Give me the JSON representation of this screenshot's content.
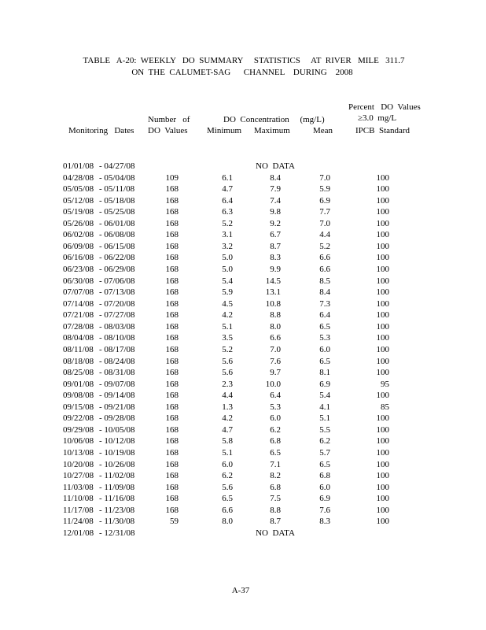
{
  "title": {
    "line1": "TABLE   A-20:  WEEKLY   DO  SUMMARY     STATISTICS     AT  RIVER   MILE   311.7",
    "line2": "ON  THE  CALUMET-SAG      CHANNEL    DURING    2008"
  },
  "headers": {
    "percent_line1": "Percent   DO  Values",
    "percent_line2": "≥3.0  mg/L",
    "percent_line3": "IPCB  Standard",
    "number_line1": "Number   of",
    "number_line2": "DO  Values",
    "concentration": "DO  Concentration     (mg/L)",
    "monitoring_dates": "Monitoring   Dates",
    "minimum": "Minimum",
    "maximum": "Maximum",
    "mean": "Mean"
  },
  "rows": [
    {
      "start": "01/01/08",
      "end": "- 04/27/08",
      "no_data": "NO  DATA"
    },
    {
      "start": "04/28/08",
      "end": "- 05/04/08",
      "count": "109",
      "min": "6.1",
      "max": "8.4",
      "mean": "7.0",
      "pct": "100"
    },
    {
      "start": "05/05/08",
      "end": "- 05/11/08",
      "count": "168",
      "min": "4.7",
      "max": "7.9",
      "mean": "5.9",
      "pct": "100"
    },
    {
      "start": "05/12/08",
      "end": "- 05/18/08",
      "count": "168",
      "min": "6.4",
      "max": "7.4",
      "mean": "6.9",
      "pct": "100"
    },
    {
      "start": "05/19/08",
      "end": "- 05/25/08",
      "count": "168",
      "min": "6.3",
      "max": "9.8",
      "mean": "7.7",
      "pct": "100"
    },
    {
      "start": "05/26/08",
      "end": "- 06/01/08",
      "count": "168",
      "min": "5.2",
      "max": "9.2",
      "mean": "7.0",
      "pct": "100"
    },
    {
      "start": "06/02/08",
      "end": "- 06/08/08",
      "count": "168",
      "min": "3.1",
      "max": "6.7",
      "mean": "4.4",
      "pct": "100"
    },
    {
      "start": "06/09/08",
      "end": "- 06/15/08",
      "count": "168",
      "min": "3.2",
      "max": "8.7",
      "mean": "5.2",
      "pct": "100"
    },
    {
      "start": "06/16/08",
      "end": "- 06/22/08",
      "count": "168",
      "min": "5.0",
      "max": "8.3",
      "mean": "6.6",
      "pct": "100"
    },
    {
      "start": "06/23/08",
      "end": "- 06/29/08",
      "count": "168",
      "min": "5.0",
      "max": "9.9",
      "mean": "6.6",
      "pct": "100"
    },
    {
      "start": "06/30/08",
      "end": "- 07/06/08",
      "count": "168",
      "min": "5.4",
      "max": "14.5",
      "mean": "8.5",
      "pct": "100"
    },
    {
      "start": "07/07/08",
      "end": "- 07/13/08",
      "count": "168",
      "min": "5.9",
      "max": "13.1",
      "mean": "8.4",
      "pct": "100"
    },
    {
      "start": "07/14/08",
      "end": "- 07/20/08",
      "count": "168",
      "min": "4.5",
      "max": "10.8",
      "mean": "7.3",
      "pct": "100"
    },
    {
      "start": "07/21/08",
      "end": "- 07/27/08",
      "count": "168",
      "min": "4.2",
      "max": "8.8",
      "mean": "6.4",
      "pct": "100"
    },
    {
      "start": "07/28/08",
      "end": "- 08/03/08",
      "count": "168",
      "min": "5.1",
      "max": "8.0",
      "mean": "6.5",
      "pct": "100"
    },
    {
      "start": "08/04/08",
      "end": "- 08/10/08",
      "count": "168",
      "min": "3.5",
      "max": "6.6",
      "mean": "5.3",
      "pct": "100"
    },
    {
      "start": "08/11/08",
      "end": "- 08/17/08",
      "count": "168",
      "min": "5.2",
      "max": "7.0",
      "mean": "6.0",
      "pct": "100"
    },
    {
      "start": "08/18/08",
      "end": "- 08/24/08",
      "count": "168",
      "min": "5.6",
      "max": "7.6",
      "mean": "6.5",
      "pct": "100"
    },
    {
      "start": "08/25/08",
      "end": "- 08/31/08",
      "count": "168",
      "min": "5.6",
      "max": "9.7",
      "mean": "8.1",
      "pct": "100"
    },
    {
      "start": "09/01/08",
      "end": "- 09/07/08",
      "count": "168",
      "min": "2.3",
      "max": "10.0",
      "mean": "6.9",
      "pct": "95"
    },
    {
      "start": "09/08/08",
      "end": "- 09/14/08",
      "count": "168",
      "min": "4.4",
      "max": "6.4",
      "mean": "5.4",
      "pct": "100"
    },
    {
      "start": "09/15/08",
      "end": "- 09/21/08",
      "count": "168",
      "min": "1.3",
      "max": "5.3",
      "mean": "4.1",
      "pct": "85"
    },
    {
      "start": "09/22/08",
      "end": "- 09/28/08",
      "count": "168",
      "min": "4.2",
      "max": "6.0",
      "mean": "5.1",
      "pct": "100"
    },
    {
      "start": "09/29/08",
      "end": "- 10/05/08",
      "count": "168",
      "min": "4.7",
      "max": "6.2",
      "mean": "5.5",
      "pct": "100"
    },
    {
      "start": "10/06/08",
      "end": "- 10/12/08",
      "count": "168",
      "min": "5.8",
      "max": "6.8",
      "mean": "6.2",
      "pct": "100"
    },
    {
      "start": "10/13/08",
      "end": "- 10/19/08",
      "count": "168",
      "min": "5.1",
      "max": "6.5",
      "mean": "5.7",
      "pct": "100"
    },
    {
      "start": "10/20/08",
      "end": "- 10/26/08",
      "count": "168",
      "min": "6.0",
      "max": "7.1",
      "mean": "6.5",
      "pct": "100"
    },
    {
      "start": "10/27/08",
      "end": "- 11/02/08",
      "count": "168",
      "min": "6.2",
      "max": "8.2",
      "mean": "6.8",
      "pct": "100"
    },
    {
      "start": "11/03/08",
      "end": "- 11/09/08",
      "count": "168",
      "min": "5.6",
      "max": "6.8",
      "mean": "6.0",
      "pct": "100"
    },
    {
      "start": "11/10/08",
      "end": "- 11/16/08",
      "count": "168",
      "min": "6.5",
      "max": "7.5",
      "mean": "6.9",
      "pct": "100"
    },
    {
      "start": "11/17/08",
      "end": "- 11/23/08",
      "count": "168",
      "min": "6.6",
      "max": "8.8",
      "mean": "7.6",
      "pct": "100"
    },
    {
      "start": "11/24/08",
      "end": "- 11/30/08",
      "count": "59",
      "min": "8.0",
      "max": "8.7",
      "mean": "8.3",
      "pct": "100"
    },
    {
      "start": "12/01/08",
      "end": "- 12/31/08",
      "no_data": "NO  DATA"
    }
  ],
  "page_number": "A-37"
}
